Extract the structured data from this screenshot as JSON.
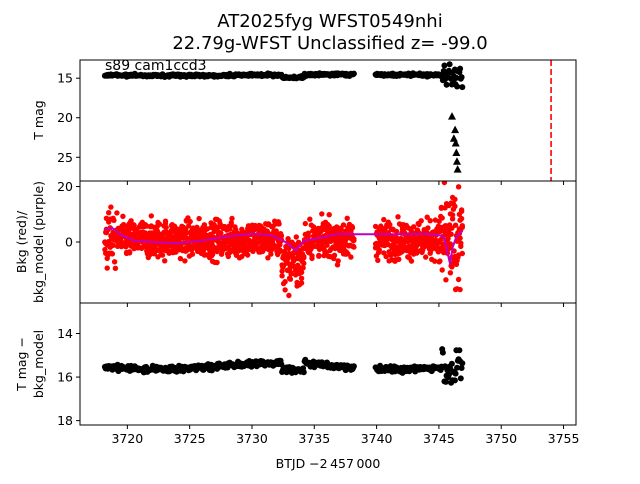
{
  "chart_data": {
    "type": "scatter",
    "title_line1": "AT2025fyg  WFST0549nhi",
    "title_line2": "22.79g-WFST Unclassified z= -99.0",
    "annotation": "s89 cam1ccd3",
    "xlabel": "BTJD −2 457 000",
    "xlim": [
      3716.2,
      3756.0
    ],
    "x_ticks": [
      3720,
      3725,
      3730,
      3735,
      3740,
      3745,
      3750,
      3755
    ],
    "x_tick_labels": [
      "3720",
      "3725",
      "3730",
      "3735",
      "3740",
      "3745",
      "3750",
      "3755"
    ],
    "data_start": 3718.2,
    "data_gap": [
      3738.2,
      3739.9
    ],
    "data_end": 3746.9,
    "event_marker_x": 3754.0,
    "colors": {
      "point_black": "#000000",
      "point_red": "#ff0000",
      "model_purple": "#bf00bf",
      "event_line": "#ff0000"
    },
    "panels": [
      {
        "id": "tmag",
        "ylabel": "T mag",
        "ylim": [
          28.0,
          12.7
        ],
        "inverted": true,
        "y_ticks": [
          15,
          20,
          25
        ],
        "y_tick_labels": [
          "15",
          "20",
          "25"
        ],
        "baseline_mag": 14.6,
        "upper_limit_marker": "triangle",
        "upper_limits": [
          [
            3746.05,
            19.8
          ],
          [
            3746.3,
            21.5
          ],
          [
            3746.35,
            23.2
          ],
          [
            3746.4,
            24.4
          ],
          [
            3746.45,
            25.5
          ],
          [
            3746.5,
            26.5
          ],
          [
            3746.2,
            22.6
          ]
        ]
      },
      {
        "id": "bkg",
        "ylabel_line1": "Bkg (red)/",
        "ylabel_line2": "bkg_model (purple)",
        "ylim": [
          -22,
          22
        ],
        "y_ticks": [
          0,
          20
        ],
        "y_tick_labels": [
          "0",
          "20"
        ],
        "model_curve": [
          [
            3718.2,
            4.5
          ],
          [
            3718.8,
            5.0
          ],
          [
            3719.5,
            2.5
          ],
          [
            3720.5,
            0.5
          ],
          [
            3722,
            0.0
          ],
          [
            3724,
            -0.5
          ],
          [
            3726,
            0.5
          ],
          [
            3728,
            2.0
          ],
          [
            3730,
            3.0
          ],
          [
            3731.5,
            2.5
          ],
          [
            3732.5,
            0.5
          ],
          [
            3733.0,
            -1.0
          ],
          [
            3733.5,
            -3.0
          ],
          [
            3734.2,
            0.5
          ],
          [
            3735.5,
            1.5
          ],
          [
            3737,
            3.0
          ],
          [
            3738.2,
            2.8
          ],
          [
            3739.9,
            2.8
          ],
          [
            3742,
            2.8
          ],
          [
            3744,
            3.0
          ],
          [
            3745,
            2.5
          ],
          [
            3745.4,
            2.0
          ],
          [
            3745.7,
            -4.0
          ],
          [
            3745.9,
            -8.0
          ],
          [
            3746.1,
            -2.0
          ],
          [
            3746.4,
            2.0
          ],
          [
            3746.9,
            4.0
          ]
        ]
      },
      {
        "id": "tmag_bkg",
        "ylabel_line1": "T mag −",
        "ylabel_line2": "bkg_model",
        "ylim": [
          18.2,
          12.6
        ],
        "inverted": true,
        "y_ticks": [
          14,
          16,
          18
        ],
        "y_tick_labels": [
          "14",
          "16",
          "18"
        ],
        "baseline_mag": 15.5
      }
    ]
  }
}
